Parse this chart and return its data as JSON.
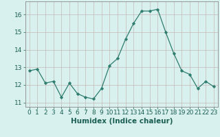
{
  "x": [
    0,
    1,
    2,
    3,
    4,
    5,
    6,
    7,
    8,
    9,
    10,
    11,
    12,
    13,
    14,
    15,
    16,
    17,
    18,
    19,
    20,
    21,
    22,
    23
  ],
  "y": [
    12.8,
    12.9,
    12.1,
    12.2,
    11.3,
    12.1,
    11.5,
    11.3,
    11.2,
    11.8,
    13.1,
    13.5,
    14.6,
    15.5,
    16.2,
    16.2,
    16.3,
    15.0,
    13.8,
    12.8,
    12.6,
    11.8,
    12.2,
    11.9
  ],
  "xlabel": "Humidex (Indice chaleur)",
  "xlim": [
    -0.5,
    23.5
  ],
  "ylim": [
    10.75,
    16.75
  ],
  "yticks": [
    11,
    12,
    13,
    14,
    15,
    16
  ],
  "xticks": [
    0,
    1,
    2,
    3,
    4,
    5,
    6,
    7,
    8,
    9,
    10,
    11,
    12,
    13,
    14,
    15,
    16,
    17,
    18,
    19,
    20,
    21,
    22,
    23
  ],
  "line_color": "#2e7d6e",
  "marker": "D",
  "marker_size": 2.2,
  "bg_color": "#d8f0ee",
  "grid_major_color": "#c4b8b8",
  "xlabel_fontsize": 7.5,
  "tick_fontsize": 6.5,
  "tick_color": "#1a5f52"
}
